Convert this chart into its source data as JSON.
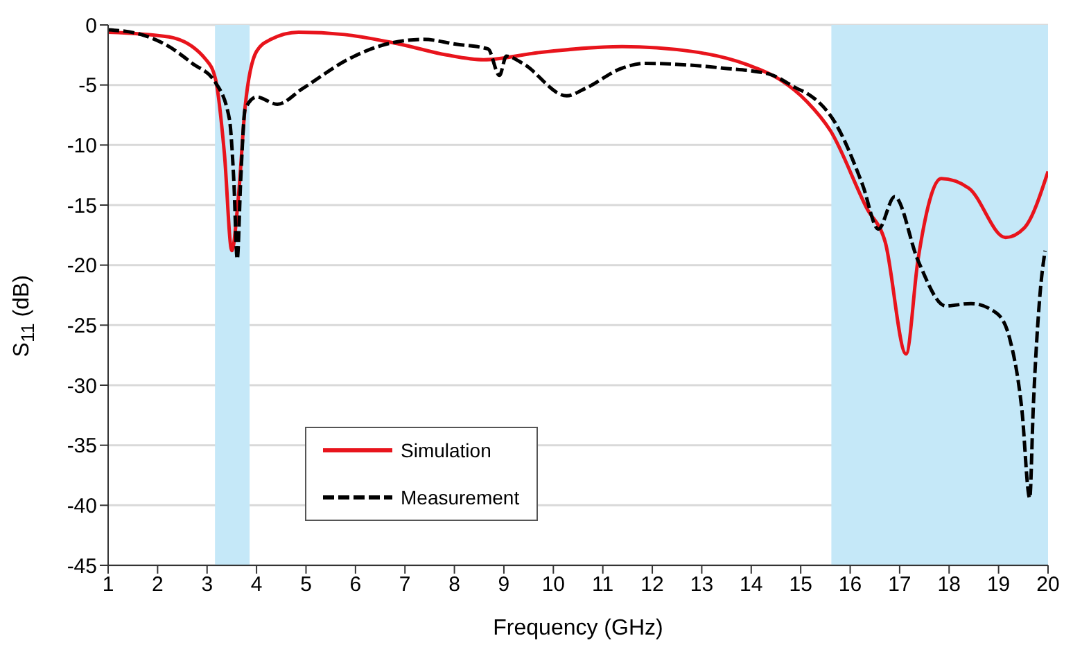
{
  "chart_data": {
    "type": "line",
    "xlabel": "Frequency (GHz)",
    "ylabel": "S$_{11}$ (dB)",
    "xlim": [
      1,
      20
    ],
    "xticks": [
      1,
      2,
      3,
      4,
      5,
      6,
      7,
      8,
      9,
      10,
      11,
      12,
      13,
      14,
      15,
      16,
      17,
      18,
      19,
      20
    ],
    "ylim": [
      -45,
      0
    ],
    "yticks": [
      -45,
      -40,
      -35,
      -30,
      -25,
      -20,
      -15,
      -10,
      -5,
      0
    ],
    "grid": "y",
    "legend": "bottom left",
    "marker": "none",
    "bands": [
      {
        "axis": "x",
        "from": 3.16,
        "to": 3.86,
        "color": "#c5e8f8"
      },
      {
        "axis": "x",
        "from": 15.62,
        "to": 20,
        "color": "#c5e8f8"
      }
    ],
    "series": [
      {
        "name": "Simulation",
        "color": "#e8141c",
        "line_style": "solid",
        "x": [
          1,
          2.23,
          2.98,
          3.17,
          3.35,
          3.5,
          3.63,
          3.77,
          4,
          4.29,
          4.85,
          5.78,
          6.9,
          7.84,
          8.59,
          9.71,
          11.39,
          12.79,
          13.91,
          14.56,
          15.13,
          15.6,
          16.34,
          16.71,
          17.13,
          17.37,
          17.84,
          18.4,
          19.14,
          19.52,
          20
        ],
        "values": [
          -0.6,
          -1,
          -2.9,
          -4.5,
          -10.7,
          -18.8,
          -14.5,
          -6.8,
          -2.2,
          -1.2,
          -0.6,
          -0.8,
          -1.6,
          -2.5,
          -2.9,
          -2.3,
          -1.8,
          -2.2,
          -3.3,
          -4.5,
          -6.4,
          -8.8,
          -15.3,
          -18.1,
          -27.4,
          -19.6,
          -12.8,
          -13.6,
          -17.7,
          -16.9,
          -12.2
        ]
      },
      {
        "name": "Measurement",
        "color": "#000000",
        "line_style": "dashed",
        "x": [
          1,
          1.67,
          2.23,
          2.7,
          3.17,
          3.45,
          3.54,
          3.61,
          3.68,
          3.77,
          4,
          4.42,
          4.93,
          5.88,
          6.62,
          7.37,
          8.03,
          8.68,
          8.91,
          9.05,
          9.38,
          10.27,
          10.64,
          11.39,
          11.85,
          13.44,
          14.37,
          14.93,
          15.13,
          15.69,
          16.25,
          16.57,
          16.9,
          17.37,
          17.93,
          18.44,
          18.96,
          19.23,
          19.47,
          19.63,
          19.7,
          19.84,
          19.94
        ],
        "values": [
          -0.4,
          -0.8,
          -1.8,
          -3.2,
          -4.8,
          -7.8,
          -12.9,
          -19.5,
          -12.9,
          -7,
          -6,
          -6.6,
          -5.3,
          -2.8,
          -1.6,
          -1.2,
          -1.6,
          -2,
          -4.2,
          -2.6,
          -3.2,
          -5.9,
          -5.3,
          -3.6,
          -3.2,
          -3.6,
          -4.1,
          -5.3,
          -5.7,
          -8.1,
          -13.3,
          -17,
          -14.3,
          -19.6,
          -23.4,
          -23.2,
          -24,
          -26.2,
          -32,
          -39.4,
          -32,
          -22.3,
          -18.8
        ]
      }
    ]
  }
}
